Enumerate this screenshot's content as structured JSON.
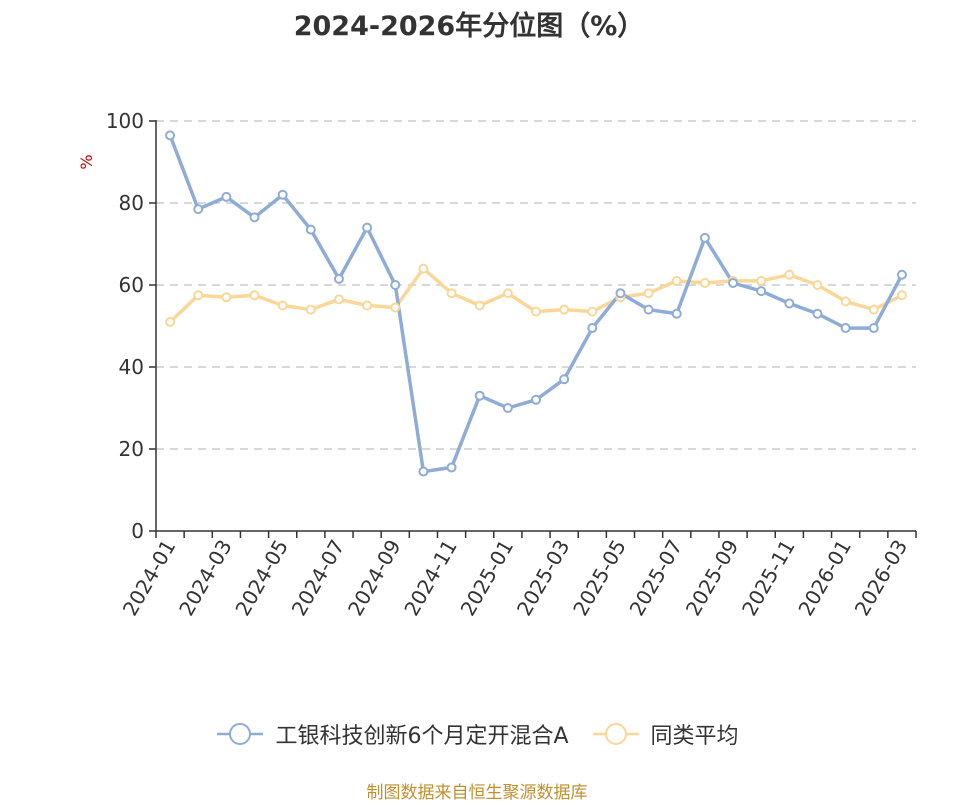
{
  "chart_data": {
    "type": "line",
    "title": "2024-2026年分位图（%）",
    "ylabel": "%",
    "xlabel": "",
    "ylim": [
      0,
      100
    ],
    "yticks": [
      0,
      20,
      40,
      60,
      80,
      100
    ],
    "grid": true,
    "legend_position": "bottom",
    "x_tick_labels": [
      "2024-01",
      "2024-03",
      "2024-05",
      "2024-07",
      "2024-09",
      "2024-11",
      "2025-01",
      "2025-03",
      "2025-05",
      "2025-07",
      "2025-09",
      "2025-11",
      "2026-01",
      "2026-03"
    ],
    "x": [
      "2024-01",
      "2024-02",
      "2024-03",
      "2024-04",
      "2024-05",
      "2024-06",
      "2024-07",
      "2024-08",
      "2024-09",
      "2024-10",
      "2024-11",
      "2024-12",
      "2025-01",
      "2025-02",
      "2025-03",
      "2025-04",
      "2025-05",
      "2025-06",
      "2025-07",
      "2025-08",
      "2025-09",
      "2025-10",
      "2025-11",
      "2025-12",
      "2026-01",
      "2026-02",
      "2026-03"
    ],
    "series": [
      {
        "name": "工银科技创新6个月定开混合A",
        "color": "#8eacd8",
        "values": [
          96.5,
          78.5,
          81.5,
          76.5,
          82,
          73.5,
          61.5,
          74,
          60,
          14.5,
          15.5,
          33,
          30,
          32,
          37,
          49.5,
          58,
          54,
          53,
          71.5,
          60.5,
          58.5,
          55.5,
          53,
          49.5,
          49.5,
          62.5
        ]
      },
      {
        "name": "同类平均",
        "color": "#fad797",
        "values": [
          51,
          57.5,
          57,
          57.5,
          55,
          54,
          56.5,
          55,
          54.5,
          64,
          58,
          55,
          58,
          53.5,
          54,
          53.5,
          57,
          58,
          61,
          60.5,
          61,
          61,
          62.5,
          60,
          56,
          54,
          57.5
        ]
      }
    ]
  },
  "legend": {
    "series1": "工银科技创新6个月定开混合A",
    "series2": "同类平均"
  },
  "source": "制图数据来自恒生聚源数据库"
}
